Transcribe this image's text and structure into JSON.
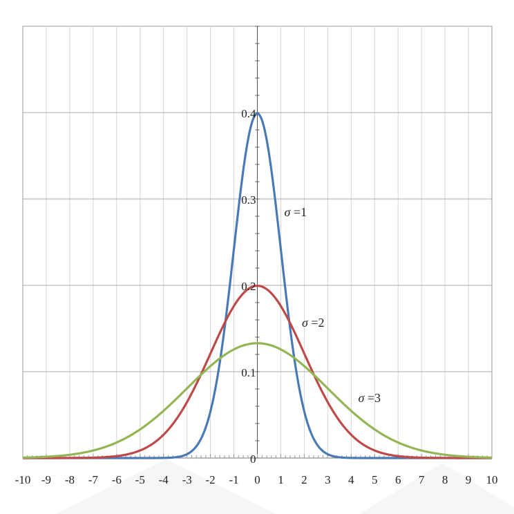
{
  "chart_data": {
    "type": "line",
    "title": "",
    "xlabel": "",
    "ylabel": "",
    "xlim": [
      -10,
      10
    ],
    "ylim": [
      0,
      0.5
    ],
    "grid": true,
    "x_ticks": [
      -10,
      -9,
      -8,
      -7,
      -6,
      -5,
      -4,
      -3,
      -2,
      -1,
      0,
      1,
      2,
      3,
      4,
      5,
      6,
      7,
      8,
      9,
      10
    ],
    "x_tick_labels": [
      "-10",
      "-9",
      "-8",
      "-7",
      "-6",
      "-5",
      "-4",
      "-3",
      "-2",
      "-1",
      "0",
      "1",
      "2",
      "3",
      "4",
      "5",
      "6",
      "7",
      "8",
      "9",
      "10"
    ],
    "y_ticks": [
      0,
      0.1,
      0.2,
      0.3,
      0.4
    ],
    "y_tick_labels": [
      "0",
      "0.1",
      "0.2",
      "0.3",
      "0.4"
    ],
    "series": [
      {
        "sigma": 1,
        "color": "#4a7ab5",
        "x": [
          -10,
          -9,
          -8,
          -7,
          -6,
          -5,
          -4,
          -3.5,
          -3,
          -2.5,
          -2,
          -1.5,
          -1,
          -0.5,
          0,
          0.5,
          1,
          1.5,
          2,
          2.5,
          3,
          3.5,
          4,
          5,
          6,
          7,
          8,
          9,
          10
        ],
        "values": [
          0,
          0,
          0,
          0,
          0,
          0,
          0.0001,
          0.0009,
          0.0044,
          0.0175,
          0.054,
          0.1295,
          0.242,
          0.3521,
          0.3989,
          0.3521,
          0.242,
          0.1295,
          0.054,
          0.0175,
          0.0044,
          0.0009,
          0.0001,
          0,
          0,
          0,
          0,
          0,
          0
        ]
      },
      {
        "sigma": 2,
        "color": "#bd4a48",
        "x": [
          -10,
          -9,
          -8,
          -7,
          -6,
          -5,
          -4,
          -3.5,
          -3,
          -2.5,
          -2,
          -1.5,
          -1,
          -0.5,
          0,
          0.5,
          1,
          1.5,
          2,
          2.5,
          3,
          3.5,
          4,
          5,
          6,
          7,
          8,
          9,
          10
        ],
        "values": [
          0,
          0,
          0.0001,
          0.0004,
          0.0022,
          0.0088,
          0.027,
          0.0431,
          0.0648,
          0.0913,
          0.121,
          0.1506,
          0.176,
          0.1933,
          0.1995,
          0.1933,
          0.176,
          0.1506,
          0.121,
          0.0913,
          0.0648,
          0.0431,
          0.027,
          0.0088,
          0.0022,
          0.0004,
          0.0001,
          0,
          0
        ]
      },
      {
        "sigma": 3,
        "color": "#93b553",
        "x": [
          -10,
          -9,
          -8,
          -7,
          -6,
          -5,
          -4,
          -3.5,
          -3,
          -2.5,
          -2,
          -1.5,
          -1,
          -0.5,
          0,
          0.5,
          1,
          1.5,
          2,
          2.5,
          3,
          3.5,
          4,
          5,
          6,
          7,
          8,
          9,
          10
        ],
        "values": [
          0.0005,
          0.0015,
          0.0038,
          0.0088,
          0.018,
          0.0332,
          0.0547,
          0.0674,
          0.0807,
          0.0939,
          0.1065,
          0.1174,
          0.1258,
          0.1311,
          0.133,
          0.1311,
          0.1258,
          0.1174,
          0.1065,
          0.0939,
          0.0807,
          0.0674,
          0.0547,
          0.0332,
          0.018,
          0.0088,
          0.0038,
          0.0015,
          0.0005
        ]
      }
    ],
    "annotations": [
      {
        "greek": "σ",
        "text": "=1",
        "x": 1.15,
        "y": 0.28
      },
      {
        "greek": "σ",
        "text": "=2",
        "x": 1.9,
        "y": 0.152
      },
      {
        "greek": "σ",
        "text": "=3",
        "x": 4.3,
        "y": 0.065
      }
    ]
  }
}
